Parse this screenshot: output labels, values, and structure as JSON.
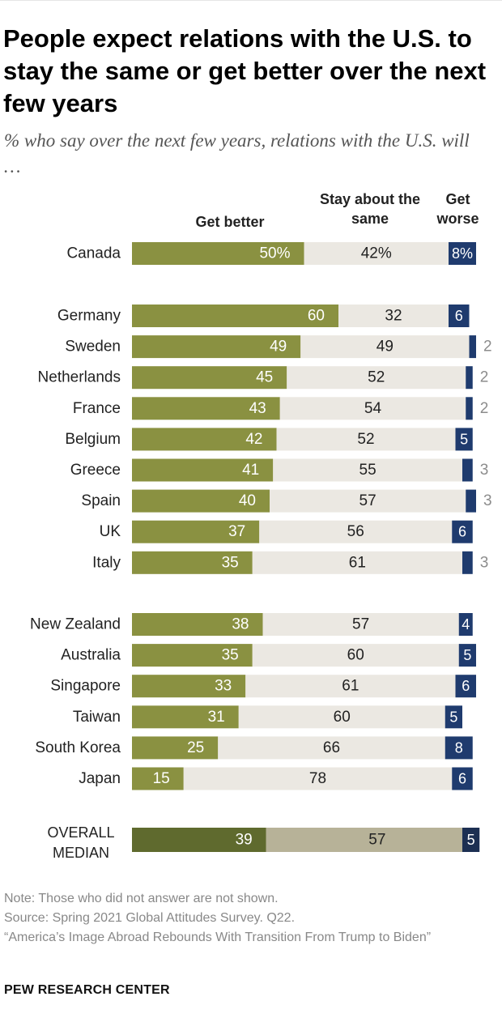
{
  "title": "People expect relations with the U.S. to stay the same or get better over the next few years",
  "subtitle": "% who say over the next few years, relations with the U.S. will …",
  "headers": {
    "better": "Get better",
    "same": "Stay about the same",
    "worse": "Get worse"
  },
  "colors": {
    "better": "#8a9141",
    "same": "#ebe8e2",
    "worse": "#1f3b6e",
    "median_better": "#5f6a2e",
    "median_same": "#b7b298",
    "median_worse": "#1c2f52",
    "outside_label": "#8c8c8c"
  },
  "chart_data": {
    "type": "bar",
    "stacked": true,
    "orientation": "horizontal",
    "series": [
      {
        "name": "Get better",
        "key": "better"
      },
      {
        "name": "Stay about the same",
        "key": "same"
      },
      {
        "name": "Get worse",
        "key": "worse"
      }
    ],
    "rows": [
      {
        "country": "Canada",
        "better": 50,
        "same": 42,
        "worse": 8,
        "percent_labels": true,
        "group": 0
      },
      {
        "country": "Germany",
        "better": 60,
        "same": 32,
        "worse": 6,
        "group": 1
      },
      {
        "country": "Sweden",
        "better": 49,
        "same": 49,
        "worse": 2,
        "group": 1
      },
      {
        "country": "Netherlands",
        "better": 45,
        "same": 52,
        "worse": 2,
        "group": 1
      },
      {
        "country": "France",
        "better": 43,
        "same": 54,
        "worse": 2,
        "group": 1
      },
      {
        "country": "Belgium",
        "better": 42,
        "same": 52,
        "worse": 5,
        "group": 1
      },
      {
        "country": "Greece",
        "better": 41,
        "same": 55,
        "worse": 3,
        "group": 1
      },
      {
        "country": "Spain",
        "better": 40,
        "same": 57,
        "worse": 3,
        "group": 1
      },
      {
        "country": "UK",
        "better": 37,
        "same": 56,
        "worse": 6,
        "group": 1
      },
      {
        "country": "Italy",
        "better": 35,
        "same": 61,
        "worse": 3,
        "group": 1
      },
      {
        "country": "New Zealand",
        "better": 38,
        "same": 57,
        "worse": 4,
        "group": 2
      },
      {
        "country": "Australia",
        "better": 35,
        "same": 60,
        "worse": 5,
        "group": 2
      },
      {
        "country": "Singapore",
        "better": 33,
        "same": 61,
        "worse": 6,
        "group": 2
      },
      {
        "country": "Taiwan",
        "better": 31,
        "same": 60,
        "worse": 5,
        "group": 2
      },
      {
        "country": "South Korea",
        "better": 25,
        "same": 66,
        "worse": 8,
        "group": 2
      },
      {
        "country": "Japan",
        "better": 15,
        "same": 78,
        "worse": 6,
        "group": 2
      }
    ],
    "median": {
      "country": "OVERALL MEDIAN",
      "better": 39,
      "same": 57,
      "worse": 5
    }
  },
  "notes": {
    "note": "Note: Those who did not answer are not shown.",
    "source": "Source: Spring 2021 Global Attitudes Survey. Q22.",
    "report": "“America’s Image Abroad Rebounds With Transition From Trump to Biden”"
  },
  "brand": "PEW RESEARCH CENTER"
}
